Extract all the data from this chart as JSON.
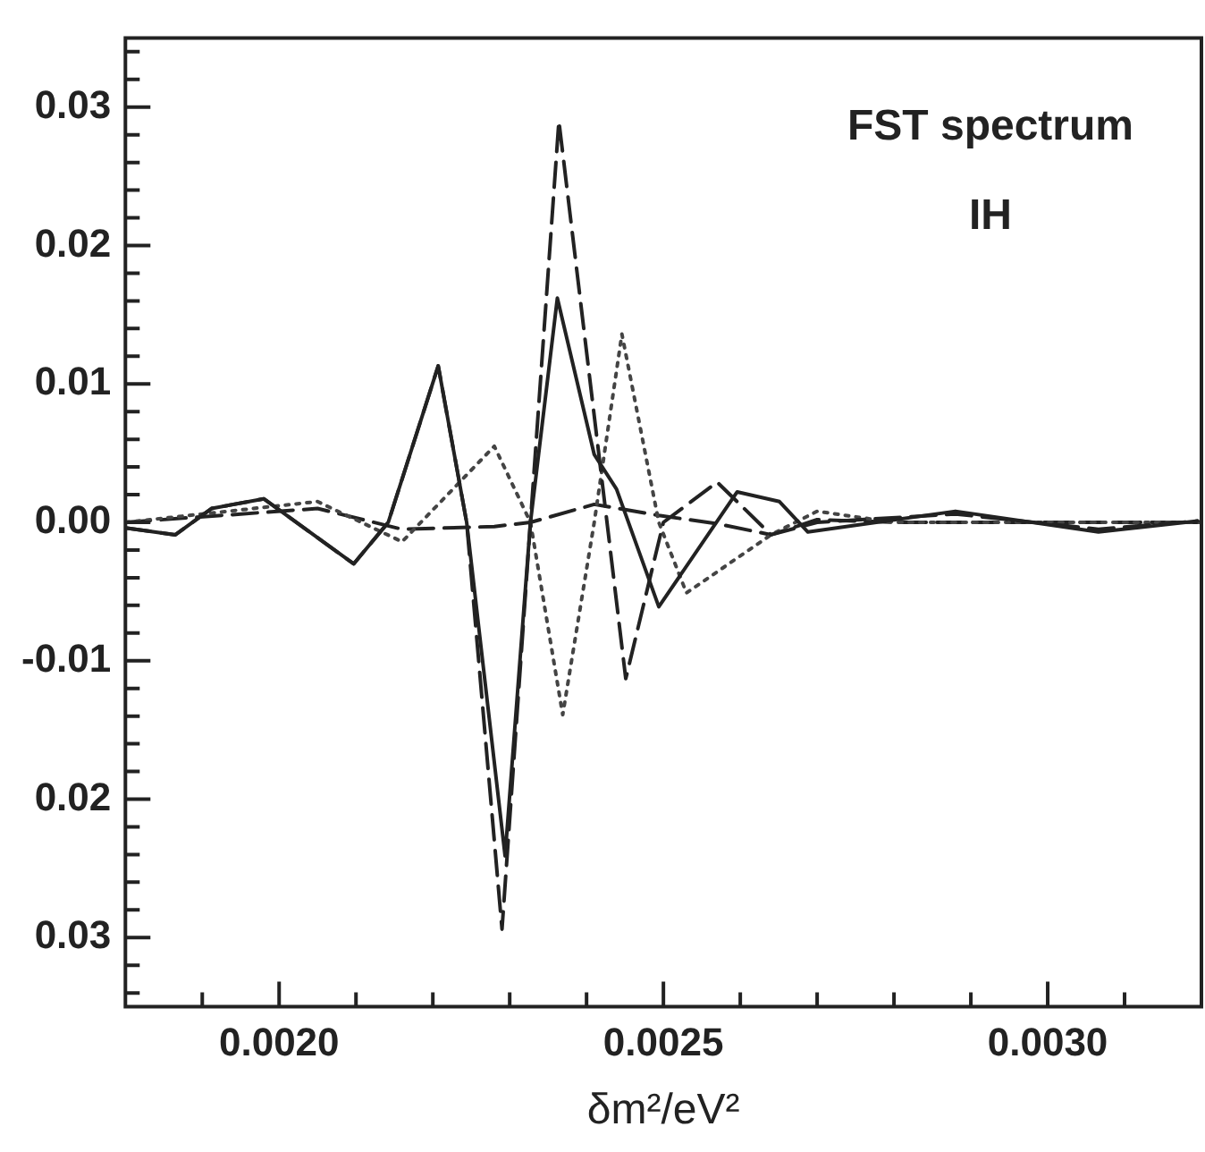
{
  "chart_data": {
    "type": "line",
    "xlabel": "δm²/eV²",
    "annotations": [
      "FST spectrum",
      "IH"
    ],
    "xlim": [
      0.0018,
      0.0032
    ],
    "xticks": [
      {
        "value": 0.0019,
        "label": null
      },
      {
        "value": 0.002,
        "label": "0.0020"
      },
      {
        "value": 0.0021,
        "label": null
      },
      {
        "value": 0.0022,
        "label": null
      },
      {
        "value": 0.0023,
        "label": null
      },
      {
        "value": 0.0024,
        "label": null
      },
      {
        "value": 0.0025,
        "label": "0.0025"
      },
      {
        "value": 0.0026,
        "label": null
      },
      {
        "value": 0.0027,
        "label": null
      },
      {
        "value": 0.0028,
        "label": null
      },
      {
        "value": 0.0029,
        "label": null
      },
      {
        "value": 0.003,
        "label": "0.0030"
      },
      {
        "value": 0.0031,
        "label": null
      }
    ],
    "ylim": [
      -0.035,
      0.035
    ],
    "yticks": [
      {
        "value": -0.034,
        "label": null
      },
      {
        "value": -0.032,
        "label": null
      },
      {
        "value": -0.03,
        "label": "0.03"
      },
      {
        "value": -0.028,
        "label": null
      },
      {
        "value": -0.026,
        "label": null
      },
      {
        "value": -0.024,
        "label": null
      },
      {
        "value": -0.022,
        "label": null
      },
      {
        "value": -0.02,
        "label": "0.02"
      },
      {
        "value": -0.018,
        "label": null
      },
      {
        "value": -0.016,
        "label": null
      },
      {
        "value": -0.014,
        "label": null
      },
      {
        "value": -0.012,
        "label": null
      },
      {
        "value": -0.01,
        "label": "-0.01"
      },
      {
        "value": -0.008,
        "label": null
      },
      {
        "value": -0.006,
        "label": null
      },
      {
        "value": -0.004,
        "label": null
      },
      {
        "value": -0.002,
        "label": null
      },
      {
        "value": 0,
        "label": "0.00"
      },
      {
        "value": 0.002,
        "label": null
      },
      {
        "value": 0.004,
        "label": null
      },
      {
        "value": 0.006,
        "label": null
      },
      {
        "value": 0.008,
        "label": null
      },
      {
        "value": 0.01,
        "label": "0.01"
      },
      {
        "value": 0.012,
        "label": null
      },
      {
        "value": 0.014,
        "label": null
      },
      {
        "value": 0.016,
        "label": null
      },
      {
        "value": 0.018,
        "label": null
      },
      {
        "value": 0.02,
        "label": "0.02"
      },
      {
        "value": 0.022,
        "label": null
      },
      {
        "value": 0.024,
        "label": null
      },
      {
        "value": 0.026,
        "label": null
      },
      {
        "value": 0.028,
        "label": null
      },
      {
        "value": 0.03,
        "label": "0.03"
      },
      {
        "value": 0.032,
        "label": null
      },
      {
        "value": 0.034,
        "label": null
      }
    ],
    "grid": false,
    "legend": false,
    "marker": "none",
    "series": [
      {
        "color": "#222222",
        "line_style": "solid",
        "x": [
          0.0018,
          0.001865,
          0.001912,
          0.00198,
          0.002097,
          0.002142,
          0.002207,
          0.002244,
          0.002294,
          0.002327,
          0.002362,
          0.00241,
          0.002439,
          0.002494,
          0.002596,
          0.002651,
          0.002688,
          0.00288,
          0.003066,
          0.003195
        ],
        "values": [
          -0.0004,
          -0.0009,
          0.001,
          0.0017,
          -0.003,
          0,
          0.0113,
          0,
          -0.0241,
          0,
          0.0162,
          0.0049,
          0.0024,
          -0.0061,
          0.0022,
          0.0015,
          -0.0007,
          0.0008,
          -0.0007,
          0.0001
        ]
      },
      {
        "color": "#222222",
        "line_style": "dashed",
        "x": [
          0.0018,
          0.001865,
          0.001912,
          0.00198,
          0.002097,
          0.002142,
          0.002207,
          0.002244,
          0.00229,
          0.002327,
          0.002364,
          0.002451,
          0.0025,
          0.00257,
          0.00264,
          0.0027,
          0.00288,
          0.003066,
          0.003195
        ],
        "values": [
          -0.0004,
          -0.0009,
          0.001,
          0.0017,
          -0.003,
          0,
          0.0113,
          0,
          -0.0294,
          0,
          0.029,
          -0.0113,
          0,
          0.0029,
          -0.0009,
          0,
          0.0006,
          -0.0005,
          0.0001
        ]
      },
      {
        "color": "#444444",
        "line_style": "dotted",
        "x": [
          0.0018,
          0.00205,
          0.00216,
          0.00228,
          0.002327,
          0.002369,
          0.00241,
          0.002446,
          0.002494,
          0.00253,
          0.00264,
          0.0027,
          0.0028,
          0.0032
        ],
        "values": [
          0,
          0.0015,
          -0.0014,
          0.0055,
          0,
          -0.0139,
          0,
          0.0136,
          0,
          -0.0051,
          -0.0009,
          0.0008,
          0,
          0
        ]
      },
      {
        "color": "#222222",
        "line_style": "dashed",
        "x": [
          0.0018,
          0.00205,
          0.00216,
          0.00228,
          0.002327,
          0.00241,
          0.002494,
          0.00257,
          0.00264,
          0.0027,
          0.0028,
          0.0032
        ],
        "values": [
          0,
          0.001,
          -0.0005,
          -0.0003,
          0,
          0.0013,
          0.0005,
          -0.0001,
          -0.0009,
          0.0002,
          0,
          0
        ]
      }
    ]
  }
}
